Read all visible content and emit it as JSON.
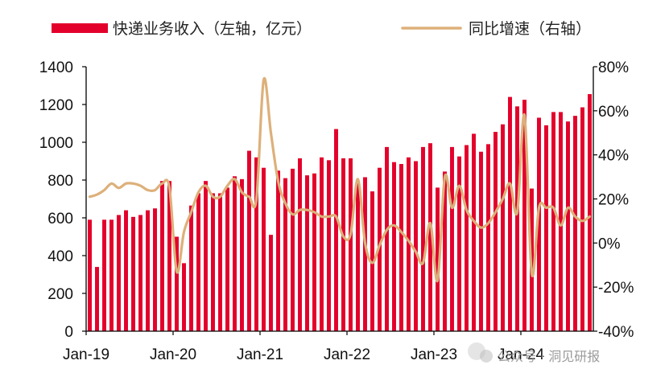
{
  "chart_data": {
    "type": "bar+line",
    "legend": [
      {
        "label": "快递业务收入（左轴，亿元）",
        "kind": "bar",
        "color": "#E3002B"
      },
      {
        "label": "同比增速（右轴）",
        "kind": "line",
        "color": "#DDB07A"
      }
    ],
    "legend_position": "top",
    "x_tick_labels": [
      "Jan-19",
      "Jan-20",
      "Jan-21",
      "Jan-22",
      "Jan-23",
      "Jan-24"
    ],
    "left_axis": {
      "min": 0,
      "max": 1400,
      "ticks": [
        "0",
        "200",
        "400",
        "600",
        "800",
        "1000",
        "1200",
        "1400"
      ]
    },
    "right_axis": {
      "min": -40,
      "max": 80,
      "ticks": [
        "-40%",
        "-20%",
        "0%",
        "20%",
        "40%",
        "60%",
        "80%"
      ]
    },
    "grid": false,
    "series": [
      {
        "name": "快递业务收入（左轴，亿元）",
        "axis": "left",
        "type": "bar",
        "color": "#E3002B",
        "values": [
          590,
          340,
          590,
          590,
          615,
          640,
          605,
          615,
          640,
          650,
          795,
          795,
          500,
          360,
          665,
          730,
          795,
          730,
          730,
          760,
          820,
          805,
          955,
          920,
          865,
          510,
          850,
          810,
          860,
          915,
          825,
          835,
          920,
          905,
          1070,
          915,
          915,
          790,
          815,
          740,
          865,
          975,
          895,
          885,
          920,
          900,
          975,
          995,
          760,
          845,
          975,
          925,
          985,
          1045,
          950,
          990,
          1055,
          1095,
          1240,
          1190,
          1225,
          755,
          1130,
          1090,
          1160,
          1160,
          1110,
          1140,
          1185,
          1255
        ]
      },
      {
        "name": "同比增速（右轴）",
        "axis": "right",
        "type": "line",
        "color": "#DDB07A",
        "values": [
          21,
          22,
          24,
          27,
          25,
          27,
          27,
          26,
          24,
          24,
          27,
          25,
          -13,
          5,
          14,
          23,
          26,
          21,
          21,
          26,
          29,
          23,
          21,
          20,
          74,
          50,
          28,
          18,
          13,
          15,
          15,
          14,
          12,
          12,
          12,
          3,
          4,
          29,
          0,
          -9,
          -1,
          6,
          8,
          5,
          1,
          -4,
          -9,
          9,
          -17,
          30,
          16,
          26,
          15,
          10,
          7,
          9,
          14,
          20,
          27,
          14,
          58,
          -14,
          16,
          16,
          16,
          8,
          16,
          12,
          10,
          12
        ]
      }
    ]
  },
  "watermark": {
    "text": "公众号 · 洞见研报"
  }
}
